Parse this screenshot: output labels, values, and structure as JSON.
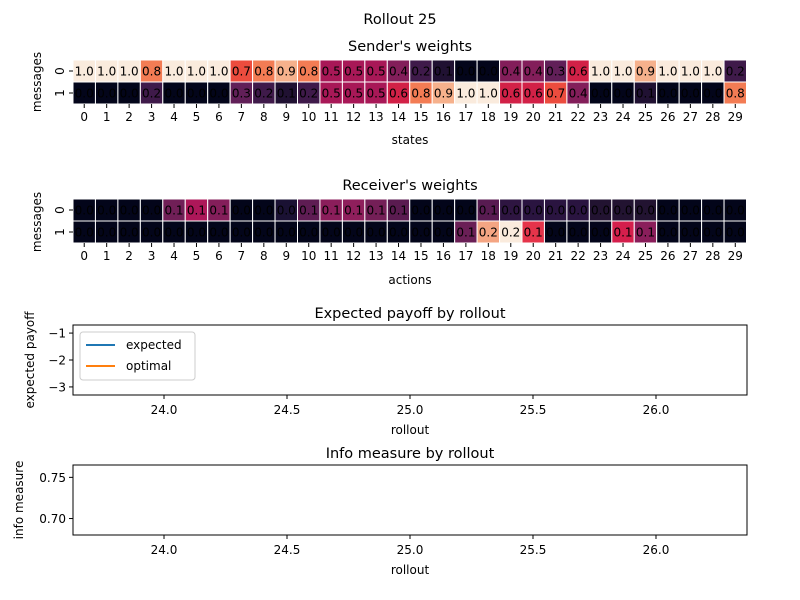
{
  "figure": {
    "suptitle": "Rollout 25"
  },
  "chart_data": [
    {
      "type": "heatmap",
      "title": "Sender's weights",
      "xlabel": "states",
      "ylabel": "messages",
      "x_categories": [
        "0",
        "1",
        "2",
        "3",
        "4",
        "5",
        "6",
        "7",
        "8",
        "9",
        "10",
        "11",
        "12",
        "13",
        "14",
        "15",
        "16",
        "17",
        "18",
        "19",
        "20",
        "21",
        "22",
        "23",
        "24",
        "25",
        "26",
        "27",
        "28",
        "29"
      ],
      "y_categories": [
        "0",
        "1"
      ],
      "values": [
        [
          1.0,
          1.0,
          1.0,
          0.8,
          1.0,
          1.0,
          1.0,
          0.7,
          0.8,
          0.9,
          0.8,
          0.5,
          0.5,
          0.5,
          0.4,
          0.2,
          0.1,
          0.0,
          0.0,
          0.4,
          0.4,
          0.3,
          0.6,
          1.0,
          1.0,
          0.9,
          1.0,
          1.0,
          1.0,
          0.2
        ],
        [
          0.0,
          0.0,
          0.0,
          0.2,
          0.0,
          0.0,
          0.0,
          0.3,
          0.2,
          0.1,
          0.2,
          0.5,
          0.5,
          0.5,
          0.6,
          0.8,
          0.9,
          1.0,
          1.0,
          0.6,
          0.6,
          0.7,
          0.4,
          0.0,
          0.0,
          0.1,
          0.0,
          0.0,
          0.0,
          0.8
        ]
      ],
      "vmin": 0.0,
      "vmax": 1.0
    },
    {
      "type": "heatmap",
      "title": "Receiver's weights",
      "xlabel": "actions",
      "ylabel": "messages",
      "x_categories": [
        "0",
        "1",
        "2",
        "3",
        "4",
        "5",
        "6",
        "7",
        "8",
        "9",
        "10",
        "11",
        "12",
        "13",
        "14",
        "15",
        "16",
        "17",
        "18",
        "19",
        "20",
        "21",
        "22",
        "23",
        "24",
        "25",
        "26",
        "27",
        "28",
        "29"
      ],
      "y_categories": [
        "0",
        "1"
      ],
      "values": [
        [
          0.0,
          0.0,
          0.0,
          0.0,
          0.1,
          0.1,
          0.1,
          0.0,
          0.0,
          0.0,
          0.1,
          0.1,
          0.1,
          0.1,
          0.1,
          0.0,
          0.0,
          0.0,
          0.1,
          0.0,
          0.0,
          0.0,
          0.0,
          0.0,
          0.0,
          0.0,
          0.0,
          0.0,
          0.0,
          0.0
        ],
        [
          0.0,
          0.0,
          0.0,
          0.0,
          0.0,
          0.0,
          0.0,
          0.0,
          0.0,
          0.0,
          0.0,
          0.0,
          0.0,
          0.0,
          0.0,
          0.0,
          0.0,
          0.1,
          0.2,
          0.2,
          0.1,
          0.0,
          0.0,
          0.0,
          0.1,
          0.1,
          0.0,
          0.0,
          0.0,
          0.0
        ]
      ],
      "cell_colors": [
        [
          "#03051a",
          "#03051a",
          "#03051a",
          "#03051a",
          "#701f57",
          "#ad1759",
          "#841e5a",
          "#03051a",
          "#03051a",
          "#1a1133",
          "#5e1c53",
          "#8b1e5b",
          "#8f1f5c",
          "#741f57",
          "#5a1b50",
          "#03051a",
          "#03051a",
          "#03051a",
          "#581b51",
          "#2e1541",
          "#2a1440",
          "#2a1440",
          "#2a1440",
          "#221331",
          "#221331",
          "#221331",
          "#03051a",
          "#03051a",
          "#03051a",
          "#03051a"
        ],
        [
          "#03051a",
          "#03051a",
          "#03051a",
          "#03051a",
          "#03051a",
          "#03051a",
          "#03051a",
          "#03051a",
          "#03051a",
          "#03051a",
          "#03051a",
          "#03051a",
          "#03051a",
          "#03051a",
          "#03051a",
          "#03051a",
          "#03051a",
          "#6a1f56",
          "#f4a583",
          "#faebdd",
          "#e5344a",
          "#03051a",
          "#03051a",
          "#03051a",
          "#d41f4c",
          "#8a1e5b",
          "#03051a",
          "#03051a",
          "#03051a",
          "#03051a"
        ]
      ]
    },
    {
      "type": "line",
      "title": "Expected payoff by rollout",
      "xlabel": "rollout",
      "ylabel": "expected payoff",
      "xlim": [
        23.63,
        26.37
      ],
      "ylim": [
        -3.3,
        -0.7
      ],
      "x_ticks": [
        "24.0",
        "24.5",
        "25.0",
        "25.5",
        "26.0"
      ],
      "y_ticks": [
        "−1",
        "−2",
        "−3"
      ],
      "series": [
        {
          "name": "expected",
          "color": "#1f77b4",
          "x": [],
          "y": []
        },
        {
          "name": "optimal",
          "color": "#ff7f0e",
          "x": [],
          "y": []
        }
      ],
      "legend": "upper left"
    },
    {
      "type": "line",
      "title": "Info measure by rollout",
      "xlabel": "rollout",
      "ylabel": "info measure",
      "xlim": [
        23.63,
        26.37
      ],
      "ylim": [
        0.68,
        0.765
      ],
      "x_ticks": [
        "24.0",
        "24.5",
        "25.0",
        "25.5",
        "26.0"
      ],
      "y_ticks": [
        "0.75",
        "0.70"
      ],
      "series": []
    }
  ]
}
